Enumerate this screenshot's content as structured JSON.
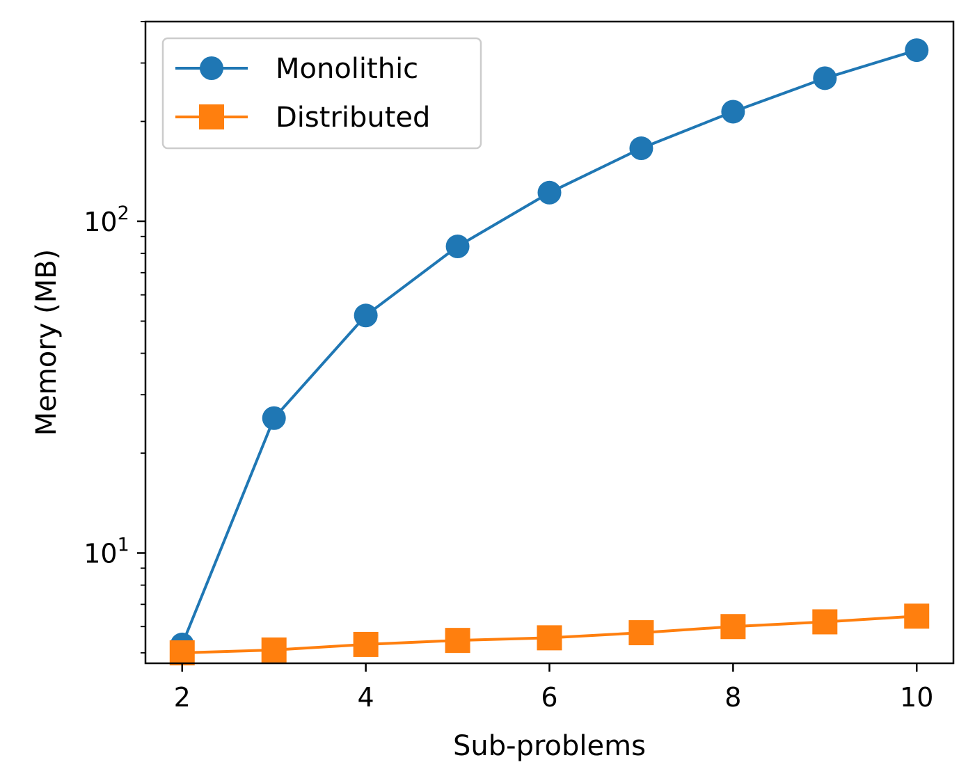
{
  "chart_data": {
    "type": "line",
    "title": "",
    "xlabel": "Sub-problems",
    "ylabel": "Memory (MB)",
    "x": [
      2,
      3,
      4,
      5,
      6,
      7,
      8,
      9,
      10
    ],
    "xticks": [
      2,
      4,
      6,
      8,
      10
    ],
    "xtick_labels": [
      "2",
      "4",
      "6",
      "8",
      "10"
    ],
    "xlim": [
      1.6,
      10.4
    ],
    "yscale": "log",
    "ylim": [
      4.65,
      400
    ],
    "yticks": [
      10,
      100
    ],
    "ytick_labels": [
      {
        "base": "10",
        "exp": "1"
      },
      {
        "base": "10",
        "exp": "2"
      }
    ],
    "grid": false,
    "legend_placement": "upper-left",
    "series": [
      {
        "name": "Monolithic",
        "marker": "circle",
        "color": "#1f77b4",
        "values": [
          5.3,
          25.5,
          52,
          84,
          122,
          166,
          214,
          270,
          328
        ]
      },
      {
        "name": "Distributed",
        "marker": "square",
        "color": "#ff7f0e",
        "values": [
          5.0,
          5.1,
          5.3,
          5.45,
          5.55,
          5.75,
          6.0,
          6.2,
          6.45
        ]
      }
    ]
  }
}
